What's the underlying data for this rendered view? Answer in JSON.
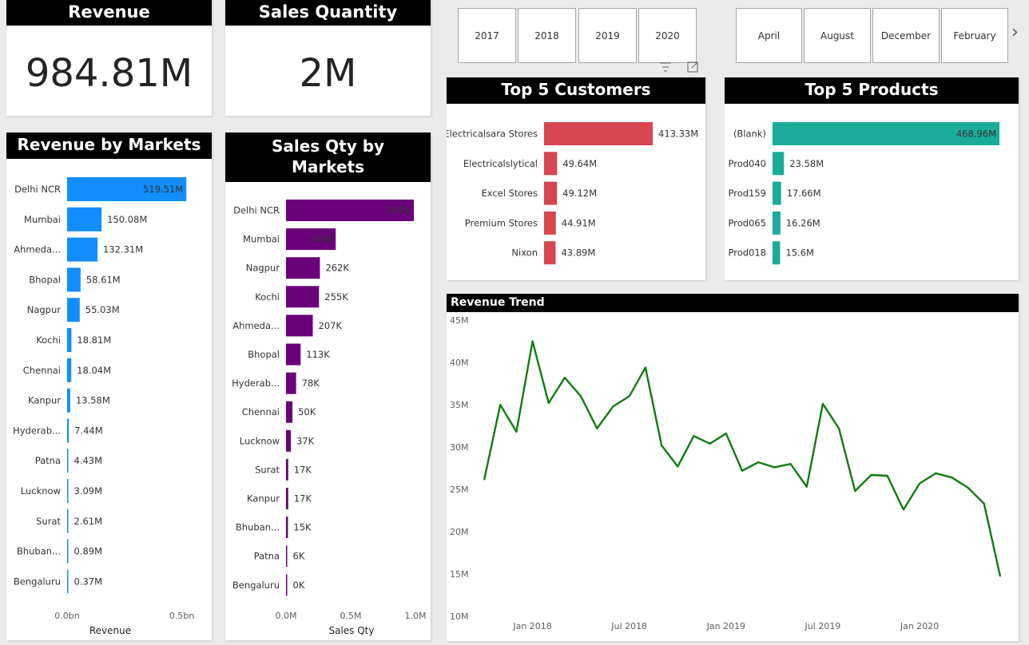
{
  "kpi": {
    "revenue": {
      "title": "Revenue",
      "value": "984.81M"
    },
    "quantity": {
      "title": "Sales Quantity",
      "value": "2M"
    }
  },
  "slicers": {
    "years": [
      "2017",
      "2018",
      "2019",
      "2020"
    ],
    "months": [
      "April",
      "August",
      "December",
      "February"
    ],
    "next_arrow": "›",
    "icons": [
      "filter-icon",
      "focus-mode-icon"
    ]
  },
  "colors": {
    "revenue_bars": "#118dff",
    "qty_bars": "#6b007b",
    "customer_bars": "#d64550",
    "product_bars": "#1aab9b",
    "trend_line": "#107c10",
    "header_bg": "#000000"
  },
  "chart_data": [
    {
      "id": "revenue_by_markets",
      "type": "bar",
      "orientation": "horizontal",
      "title": "Revenue by Markets",
      "xlabel": "Revenue",
      "xlim": [
        0,
        0.55
      ],
      "x_ticks": [
        "0.0bn",
        "0.5bn"
      ],
      "categories": [
        "Delhi NCR",
        "Mumbai",
        "Ahmeda...",
        "Bhopal",
        "Nagpur",
        "Kochi",
        "Chennai",
        "Kanpur",
        "Hyderab...",
        "Patna",
        "Lucknow",
        "Surat",
        "Bhuban...",
        "Bengaluru"
      ],
      "values": [
        519.51,
        150.08,
        132.31,
        58.61,
        55.03,
        18.81,
        18.04,
        13.58,
        7.44,
        4.43,
        3.09,
        2.61,
        0.89,
        0.37
      ],
      "labels": [
        "519.51M",
        "150.08M",
        "132.31M",
        "58.61M",
        "55.03M",
        "18.81M",
        "18.04M",
        "13.58M",
        "7.44M",
        "4.43M",
        "3.09M",
        "2.61M",
        "0.89M",
        "0.37M"
      ]
    },
    {
      "id": "sales_qty_by_markets",
      "type": "bar",
      "orientation": "horizontal",
      "title": "Sales Qty by Markets",
      "xlabel": "Sales Qty",
      "xlim": [
        0,
        1000
      ],
      "x_ticks": [
        "0.0M",
        "0.5M",
        "1.0M"
      ],
      "categories": [
        "Delhi NCR",
        "Mumbai",
        "Nagpur",
        "Kochi",
        "Ahmeda...",
        "Bhopal",
        "Hyderab...",
        "Chennai",
        "Lucknow",
        "Surat",
        "Kanpur",
        "Bhuban...",
        "Patna",
        "Bengaluru"
      ],
      "values": [
        988,
        384,
        262,
        255,
        207,
        113,
        78,
        50,
        37,
        17,
        17,
        15,
        6,
        0.5
      ],
      "labels": [
        "988K",
        "384K",
        "262K",
        "255K",
        "207K",
        "113K",
        "78K",
        "50K",
        "37K",
        "17K",
        "17K",
        "15K",
        "6K",
        "0K"
      ]
    },
    {
      "id": "top5_customers",
      "type": "bar",
      "orientation": "horizontal",
      "title": "Top 5 Customers",
      "categories": [
        "Electricalsara Stores",
        "Electricalslytical",
        "Excel Stores",
        "Premium Stores",
        "Nixon"
      ],
      "values": [
        413.33,
        49.64,
        49.12,
        44.91,
        43.89
      ],
      "labels": [
        "413.33M",
        "49.64M",
        "49.12M",
        "44.91M",
        "43.89M"
      ]
    },
    {
      "id": "top5_products",
      "type": "bar",
      "orientation": "horizontal",
      "title": "Top 5 Products",
      "categories": [
        "(Blank)",
        "Prod040",
        "Prod159",
        "Prod065",
        "Prod018"
      ],
      "values": [
        468.96,
        23.58,
        17.66,
        16.26,
        15.6
      ],
      "labels": [
        "468.96M",
        "23.58M",
        "17.66M",
        "16.26M",
        "15.6M"
      ]
    },
    {
      "id": "revenue_trend",
      "type": "line",
      "title": "Revenue Trend",
      "ylim": [
        10,
        45
      ],
      "y_ticks": [
        "10M",
        "15M",
        "20M",
        "25M",
        "30M",
        "35M",
        "40M",
        "45M"
      ],
      "x_ticks": [
        "Jan 2018",
        "Jul 2018",
        "Jan 2019",
        "Jul 2019",
        "Jan 2020"
      ],
      "x_tick_months": [
        3,
        9,
        15,
        21,
        27
      ],
      "x": [
        "2017-10",
        "2017-11",
        "2017-12",
        "2018-01",
        "2018-02",
        "2018-03",
        "2018-04",
        "2018-05",
        "2018-06",
        "2018-07",
        "2018-08",
        "2018-09",
        "2018-10",
        "2018-11",
        "2018-12",
        "2019-01",
        "2019-02",
        "2019-03",
        "2019-04",
        "2019-05",
        "2019-06",
        "2019-07",
        "2019-08",
        "2019-09",
        "2019-10",
        "2019-11",
        "2019-12",
        "2020-01",
        "2020-02",
        "2020-03",
        "2020-04",
        "2020-05",
        "2020-06"
      ],
      "values": [
        26.1,
        35.0,
        31.8,
        42.5,
        35.2,
        38.2,
        36.0,
        32.2,
        34.8,
        36.0,
        39.4,
        30.2,
        27.7,
        31.3,
        30.4,
        31.6,
        27.2,
        28.2,
        27.6,
        28.0,
        25.3,
        35.1,
        32.2,
        24.8,
        26.7,
        26.6,
        22.6,
        25.7,
        26.9,
        26.4,
        25.2,
        23.3,
        14.7
      ],
      "grid": false
    }
  ]
}
